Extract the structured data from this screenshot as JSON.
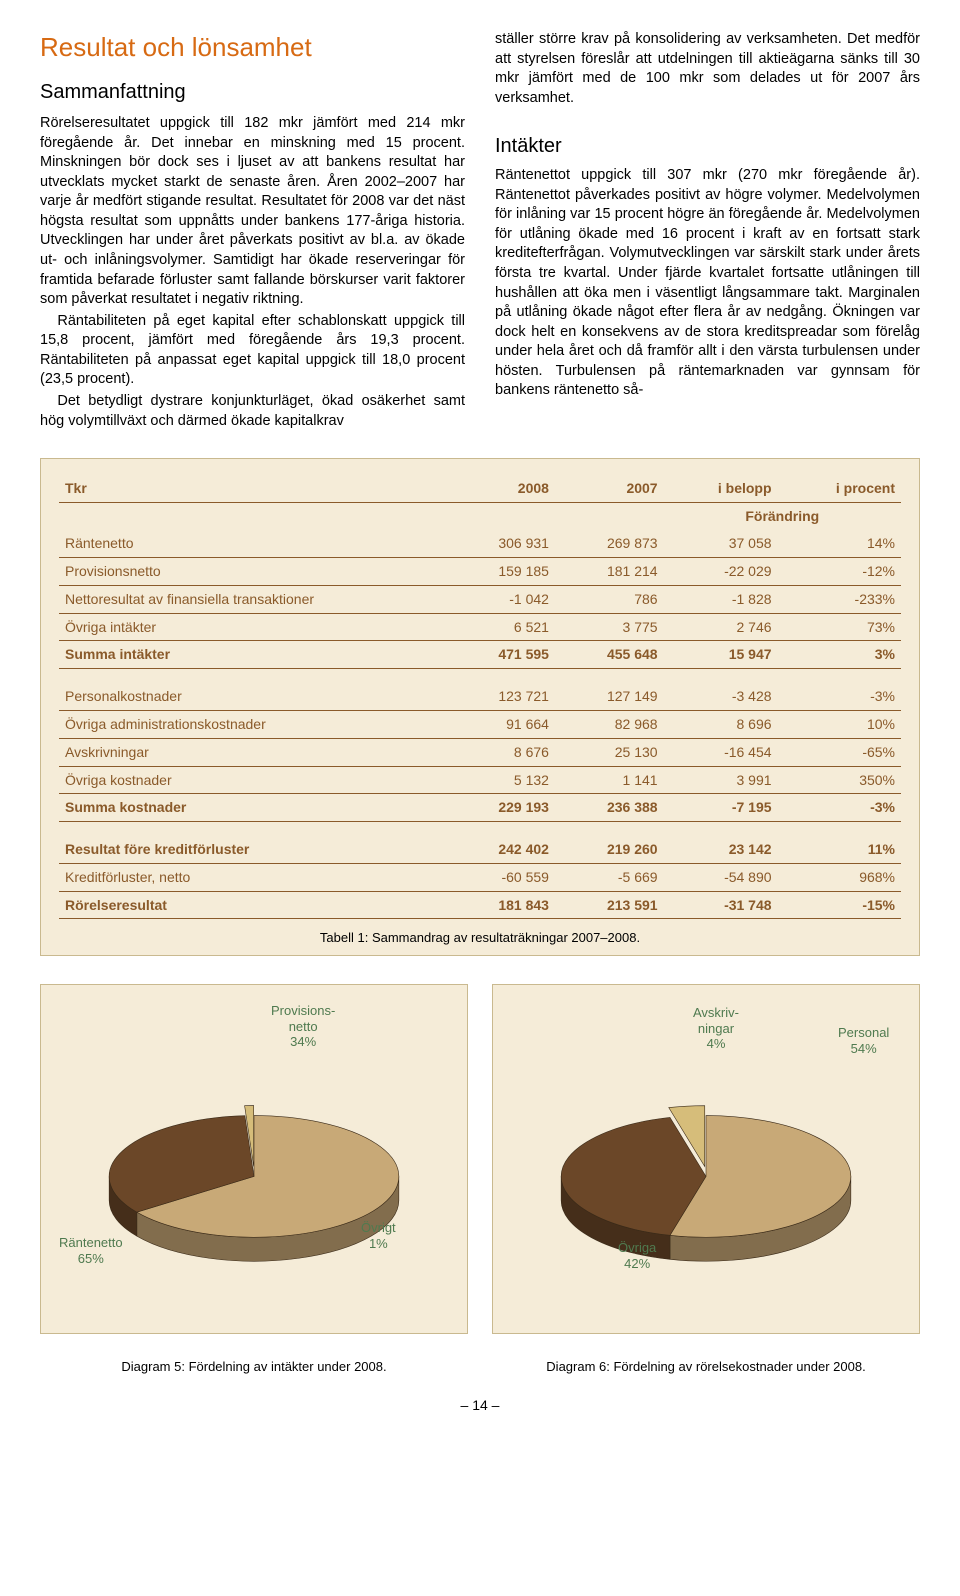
{
  "header": {
    "main_title": "Resultat och lönsamhet",
    "sub_title": "Sammanfattning"
  },
  "left_paragraphs": [
    "Rörelseresultatet uppgick till 182 mkr jämfört med 214 mkr föregående år. Det innebar en minskning med 15 procent. Minskningen bör dock ses i ljuset av att bankens resultat har utvecklats mycket starkt de senaste åren. Åren 2002–2007 har varje år medfört stigande resultat. Resultatet för 2008 var det näst högsta resultat som uppnåtts under bankens 177-åriga historia. Utvecklingen har under året påverkats positivt av bl.a. av ökade ut- och inlåningsvolymer. Samtidigt har ökade reserveringar för framtida befarade förluster samt fallande börskurser varit faktorer som påverkat resultatet i negativ riktning.",
    "Räntabiliteten på eget kapital efter schablonskatt uppgick till 15,8 procent, jämfört med föregående års 19,3 procent. Räntabiliteten på anpassat eget kapital uppgick till 18,0 procent (23,5 procent).",
    "Det betydligt dystrare konjunkturläget, ökad osäkerhet samt hög volymtillväxt och därmed ökade kapitalkrav"
  ],
  "right_top_paragraph": "ställer större krav på konsolidering av verksamheten. Det medför att styrelsen föreslår att utdelningen till aktieägarna sänks till 30 mkr jämfört med de 100 mkr som delades ut för 2007 års verksamhet.",
  "right_section_title": "Intäkter",
  "right_paragraph": "Räntenettot uppgick till 307 mkr (270 mkr föregående år). Räntenettot påverkades positivt av högre volymer. Medelvolymen för inlåning var 15 procent högre än föregående år. Medelvolymen för utlåning ökade med 16 procent i kraft av en fortsatt stark kreditefterfrågan. Volymutvecklingen var särskilt stark under årets första tre kvartal. Under fjärde kvartalet fortsatte utlåningen till hushållen att öka men i väsentligt långsammare takt. Marginalen på utlåning ökade något efter flera år av nedgång. Ökningen var dock helt en konsekvens av de stora kreditspreadar som förelåg under hela året och då framför allt i den värsta turbulensen under hösten. Turbulensen på räntemarknaden var gynnsam för bankens räntenetto så-",
  "table": {
    "change_header": "Förändring",
    "columns": [
      "Tkr",
      "2008",
      "2007",
      "i belopp",
      "i procent"
    ],
    "rows": [
      {
        "label": "Räntenetto",
        "c": [
          "306 931",
          "269 873",
          "37 058",
          "14%"
        ],
        "rule": true
      },
      {
        "label": "Provisionsnetto",
        "c": [
          "159 185",
          "181 214",
          "-22 029",
          "-12%"
        ],
        "rule": true
      },
      {
        "label": "Nettoresultat av finansiella transaktioner",
        "c": [
          "-1 042",
          "786",
          "-1 828",
          "-233%"
        ],
        "rule": true
      },
      {
        "label": "Övriga intäkter",
        "c": [
          "6 521",
          "3 775",
          "2 746",
          "73%"
        ],
        "rule": false
      },
      {
        "label": "Summa intäkter",
        "c": [
          "471 595",
          "455 648",
          "15 947",
          "3%"
        ],
        "sum": true
      }
    ],
    "rows2": [
      {
        "label": "Personalkostnader",
        "c": [
          "123 721",
          "127 149",
          "-3 428",
          "-3%"
        ],
        "rule": true
      },
      {
        "label": "Övriga administrationskostnader",
        "c": [
          "91 664",
          "82 968",
          "8 696",
          "10%"
        ],
        "rule": true
      },
      {
        "label": "Avskrivningar",
        "c": [
          "8 676",
          "25 130",
          "-16 454",
          "-65%"
        ],
        "rule": true
      },
      {
        "label": "Övriga kostnader",
        "c": [
          "5 132",
          "1 141",
          "3 991",
          "350%"
        ],
        "rule": false
      },
      {
        "label": "Summa kostnader",
        "c": [
          "229 193",
          "236 388",
          "-7 195",
          "-3%"
        ],
        "sum": true
      }
    ],
    "rows3": [
      {
        "label": "Resultat före kreditförluster",
        "c": [
          "242 402",
          "219 260",
          "23 142",
          "11%"
        ],
        "bold": true,
        "rule": true
      },
      {
        "label": "Kreditförluster, netto",
        "c": [
          "-60 559",
          "-5 669",
          "-54 890",
          "968%"
        ],
        "rule": false
      },
      {
        "label": "Rörelseresultat",
        "c": [
          "181 843",
          "213 591",
          "-31 748",
          "-15%"
        ],
        "sum": true
      }
    ],
    "caption": "Tabell 1: Sammandrag av resultaträkningar 2007–2008."
  },
  "chart5": {
    "type": "pie",
    "slices": [
      {
        "label": "Räntenetto",
        "sublabel": "65%",
        "value": 65,
        "color": "#c8a977"
      },
      {
        "label": "Provisions-\nnetto",
        "sublabel": "34%",
        "value": 34,
        "color": "#6b4728"
      },
      {
        "label": "Övrigt",
        "sublabel": "1%",
        "value": 1,
        "color": "#d6bd7a"
      }
    ],
    "background": "#f5ecd8",
    "border": "#c9b98f",
    "caption": "Diagram 5: Fördelning av intäkter under 2008."
  },
  "chart6": {
    "type": "pie",
    "slices": [
      {
        "label": "Personal",
        "sublabel": "54%",
        "value": 54,
        "color": "#c8a977"
      },
      {
        "label": "Övriga",
        "sublabel": "42%",
        "value": 42,
        "color": "#6b4728"
      },
      {
        "label": "Avskriv-\nningar",
        "sublabel": "4%",
        "value": 4,
        "color": "#d6bd7a"
      }
    ],
    "background": "#f5ecd8",
    "border": "#c9b98f",
    "caption": "Diagram 6: Fördelning av rörelsekostnader under 2008."
  },
  "page_number": "– 14 –",
  "colors": {
    "title_orange": "#d76a13",
    "table_text": "#8a5a2a",
    "label_green": "#4f7a4f",
    "panel_bg": "#f5ecd8",
    "panel_border": "#c9b98f"
  }
}
